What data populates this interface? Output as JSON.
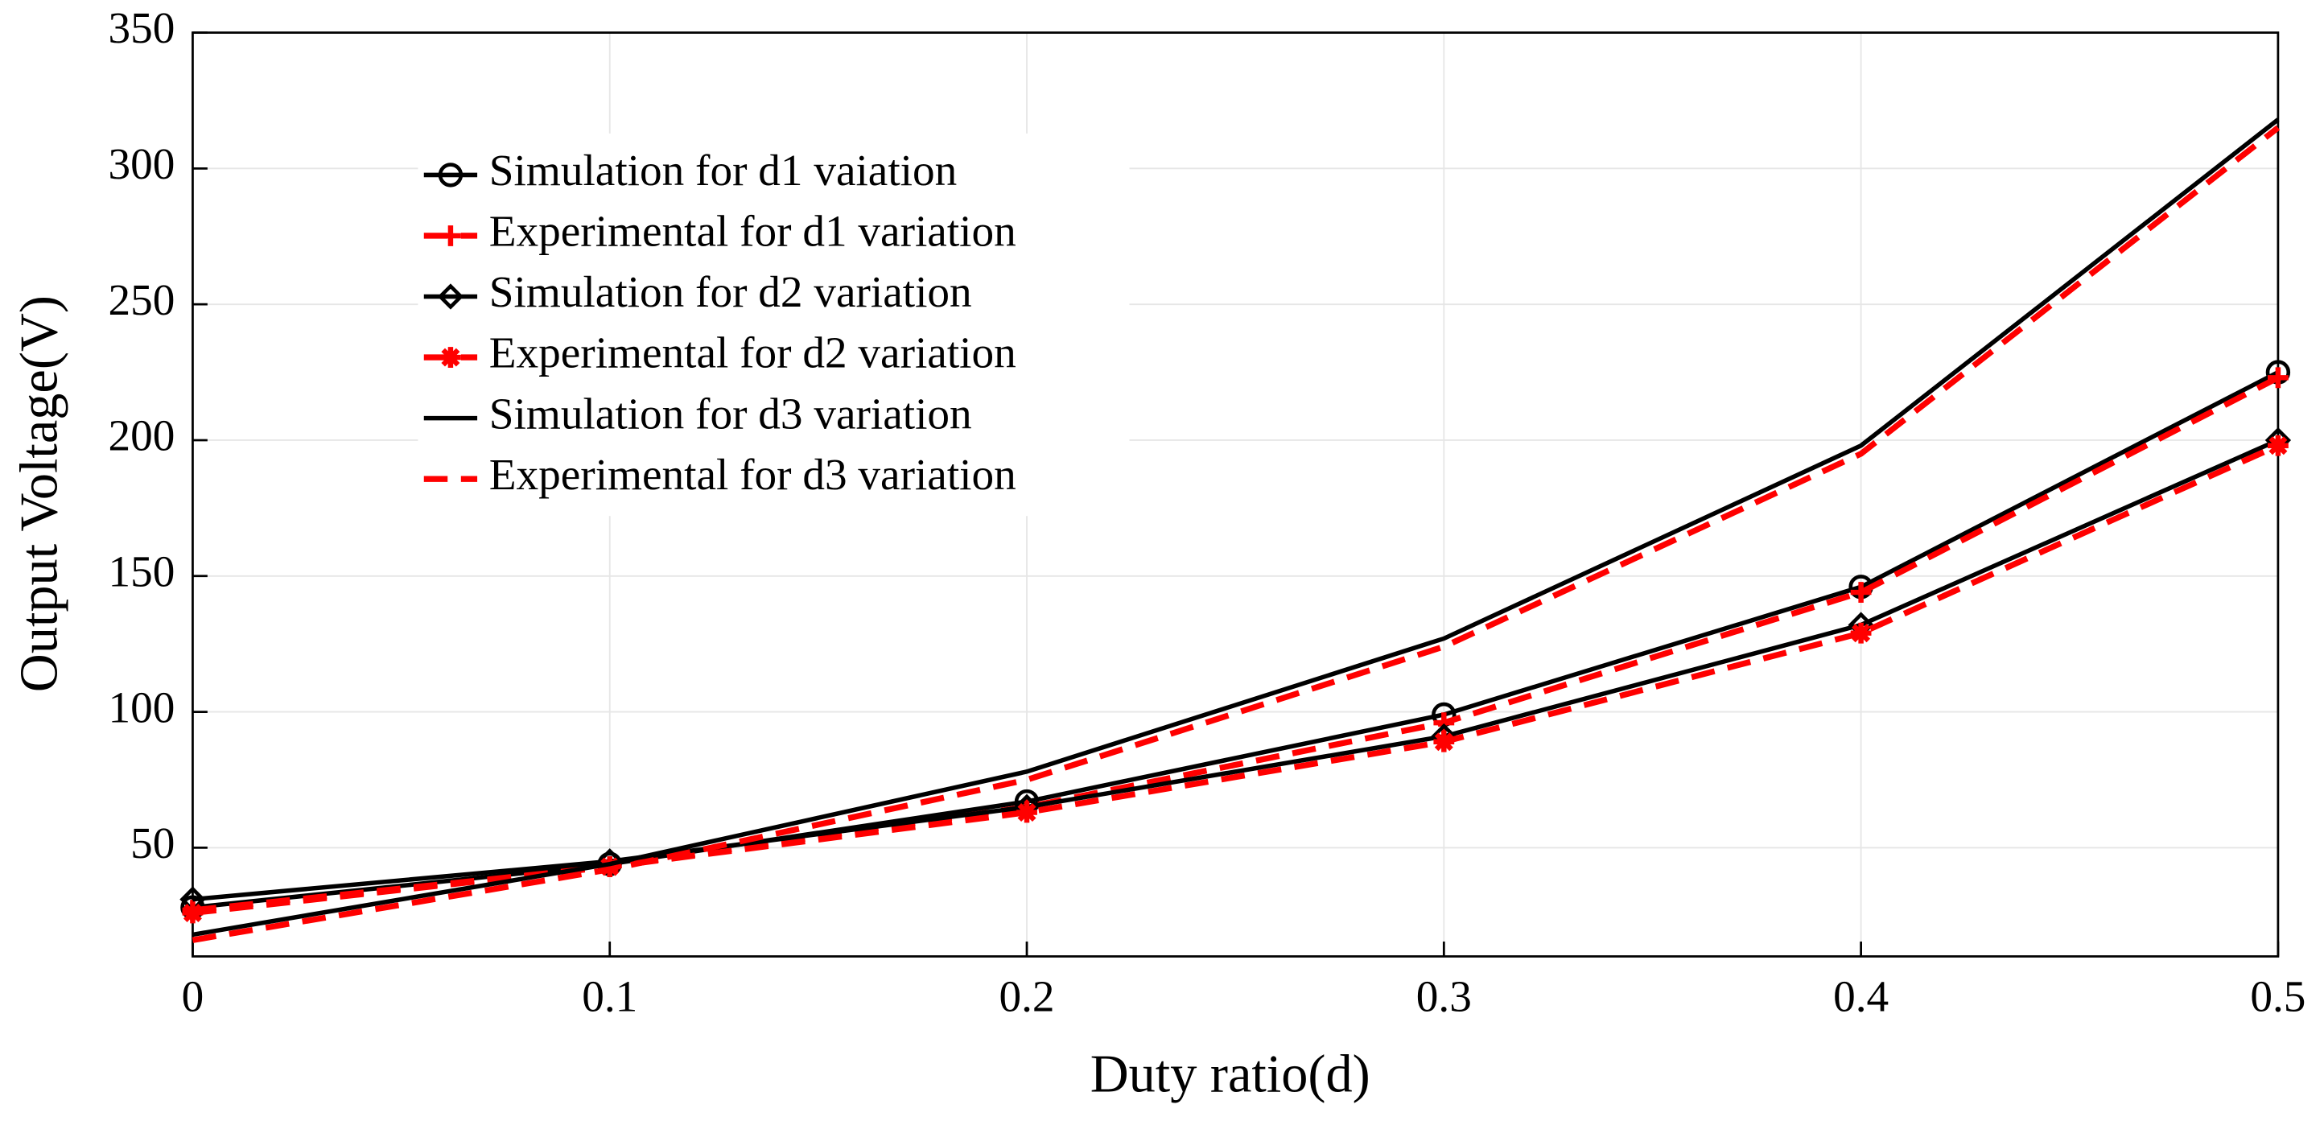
{
  "chart_data": {
    "type": "line",
    "xlabel": "Duty ratio(d)",
    "ylabel": "Output Voltage(V)",
    "x": [
      0,
      0.1,
      0.2,
      0.3,
      0.4,
      0.5
    ],
    "series": [
      {
        "name": "Simulation for d1 vaiation",
        "color": "#000000",
        "marker": "circle",
        "dashed": false,
        "values": [
          28,
          44,
          67,
          99,
          146,
          225
        ]
      },
      {
        "name": "Experimental for d1 variation",
        "color": "#ff0000",
        "marker": "plus",
        "dashed": true,
        "values": [
          27,
          43,
          65,
          96,
          144,
          223
        ]
      },
      {
        "name": "Simulation for d2 variation",
        "color": "#000000",
        "marker": "diamond",
        "dashed": false,
        "values": [
          31,
          45,
          65,
          91,
          132,
          200
        ]
      },
      {
        "name": "Experimental for d2 variation",
        "color": "#ff0000",
        "marker": "asterisk",
        "dashed": true,
        "values": [
          26,
          43,
          63,
          89,
          129,
          198
        ]
      },
      {
        "name": "Simulation for d3 variation",
        "color": "#000000",
        "marker": "none",
        "dashed": false,
        "values": [
          18,
          44,
          78,
          127,
          198,
          318
        ]
      },
      {
        "name": "Experimental for d3 variation",
        "color": "#ff0000",
        "marker": "none",
        "dashed": true,
        "values": [
          16,
          42,
          75,
          124,
          195,
          315
        ]
      }
    ],
    "xlim": [
      0,
      0.5
    ],
    "xticks": [
      0,
      0.1,
      0.2,
      0.3,
      0.4,
      0.5
    ],
    "ylim": [
      10,
      350
    ],
    "yticks": [
      50,
      100,
      150,
      200,
      250,
      300,
      350
    ],
    "grid": true,
    "legend": "upper left"
  }
}
